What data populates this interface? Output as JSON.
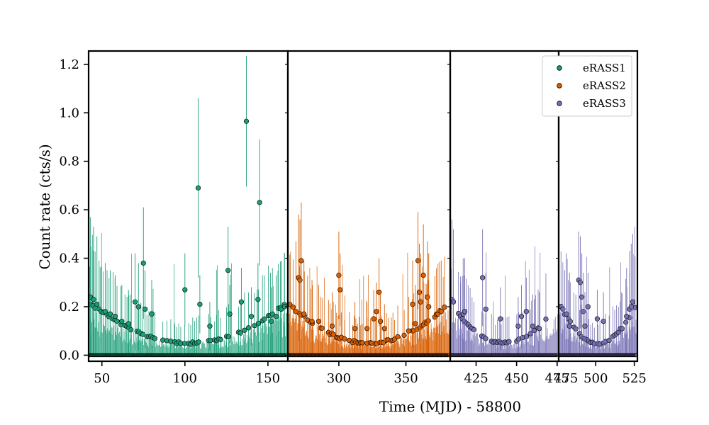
{
  "chart_data": {
    "type": "scatter",
    "title": "",
    "xlabel": "Time (MJD) - 58800",
    "ylabel": "Count rate (cts/s)",
    "ylim": [
      -0.025,
      1.255
    ],
    "yticks": [
      0.0,
      0.2,
      0.4,
      0.6,
      0.8,
      1.0,
      1.2
    ],
    "ytick_labels": [
      "0.0",
      "0.2",
      "0.4",
      "0.6",
      "0.8",
      "1.0",
      "1.2"
    ],
    "grid": false,
    "legend_position": "top-right",
    "series": [
      {
        "name": "eRASS1",
        "color": "#1b9e77"
      },
      {
        "name": "eRASS2",
        "color": "#d95f02"
      },
      {
        "name": "eRASS3",
        "color": "#7570b3"
      }
    ],
    "panels": [
      {
        "series": "eRASS1",
        "xlim": [
          42,
          162
        ],
        "xticks": [
          50,
          100,
          150
        ],
        "xtick_labels": [
          "50",
          "100",
          "150"
        ],
        "highlights": [
          {
            "x": 43,
            "y": 0.24,
            "err": 0.33
          },
          {
            "x": 45,
            "y": 0.23,
            "err": 0.3
          },
          {
            "x": 47,
            "y": 0.21,
            "err": 0.28
          },
          {
            "x": 52,
            "y": 0.18,
            "err": 0.2
          },
          {
            "x": 55,
            "y": 0.17,
            "err": 0.18
          },
          {
            "x": 58,
            "y": 0.16,
            "err": 0.17
          },
          {
            "x": 62,
            "y": 0.14,
            "err": 0.15
          },
          {
            "x": 66,
            "y": 0.13,
            "err": 0.14
          },
          {
            "x": 70,
            "y": 0.22,
            "err": 0.2
          },
          {
            "x": 72,
            "y": 0.2,
            "err": 0.18
          },
          {
            "x": 75,
            "y": 0.38,
            "err": 0.23
          },
          {
            "x": 76,
            "y": 0.19,
            "err": 0.16
          },
          {
            "x": 80,
            "y": 0.17,
            "err": 0.14
          },
          {
            "x": 100,
            "y": 0.27,
            "err": 0.15
          },
          {
            "x": 108,
            "y": 0.69,
            "err": 0.37
          },
          {
            "x": 109,
            "y": 0.21,
            "err": 0.12
          },
          {
            "x": 115,
            "y": 0.12,
            "err": 0.1
          },
          {
            "x": 126,
            "y": 0.35,
            "err": 0.18
          },
          {
            "x": 127,
            "y": 0.17,
            "err": 0.12
          },
          {
            "x": 134,
            "y": 0.22,
            "err": 0.14
          },
          {
            "x": 137,
            "y": 0.965,
            "err": 0.27
          },
          {
            "x": 140,
            "y": 0.16,
            "err": 0.12
          },
          {
            "x": 144,
            "y": 0.23,
            "err": 0.15
          },
          {
            "x": 145,
            "y": 0.63,
            "err": 0.26
          },
          {
            "x": 152,
            "y": 0.14,
            "err": 0.14
          },
          {
            "x": 155,
            "y": 0.16,
            "err": 0.17
          },
          {
            "x": 158,
            "y": 0.19,
            "err": 0.2
          },
          {
            "x": 160,
            "y": 0.2,
            "err": 0.22
          }
        ]
      },
      {
        "series": "eRASS2",
        "xlim": [
          262,
          383
        ],
        "xticks": [
          300,
          350
        ],
        "xtick_labels": [
          "300",
          "350"
        ],
        "highlights": [
          {
            "x": 268,
            "y": 0.18,
            "err": 0.29
          },
          {
            "x": 270,
            "y": 0.32,
            "err": 0.26
          },
          {
            "x": 271,
            "y": 0.31,
            "err": 0.25
          },
          {
            "x": 272,
            "y": 0.39,
            "err": 0.24
          },
          {
            "x": 274,
            "y": 0.17,
            "err": 0.22
          },
          {
            "x": 280,
            "y": 0.14,
            "err": 0.17
          },
          {
            "x": 285,
            "y": 0.14,
            "err": 0.15
          },
          {
            "x": 295,
            "y": 0.12,
            "err": 0.14
          },
          {
            "x": 300,
            "y": 0.33,
            "err": 0.18
          },
          {
            "x": 301,
            "y": 0.27,
            "err": 0.15
          },
          {
            "x": 312,
            "y": 0.11,
            "err": 0.11
          },
          {
            "x": 321,
            "y": 0.11,
            "err": 0.11
          },
          {
            "x": 326,
            "y": 0.15,
            "err": 0.12
          },
          {
            "x": 328,
            "y": 0.18,
            "err": 0.12
          },
          {
            "x": 330,
            "y": 0.26,
            "err": 0.14
          },
          {
            "x": 331,
            "y": 0.14,
            "err": 0.12
          },
          {
            "x": 334,
            "y": 0.11,
            "err": 0.1
          },
          {
            "x": 352,
            "y": 0.1,
            "err": 0.14
          },
          {
            "x": 355,
            "y": 0.21,
            "err": 0.18
          },
          {
            "x": 357,
            "y": 0.13,
            "err": 0.16
          },
          {
            "x": 359,
            "y": 0.39,
            "err": 0.2
          },
          {
            "x": 360,
            "y": 0.26,
            "err": 0.2
          },
          {
            "x": 361,
            "y": 0.22,
            "err": 0.2
          },
          {
            "x": 363,
            "y": 0.33,
            "err": 0.21
          },
          {
            "x": 366,
            "y": 0.24,
            "err": 0.23
          },
          {
            "x": 367,
            "y": 0.2,
            "err": 0.22
          }
        ]
      },
      {
        "series": "eRASS3",
        "xlim": [
          409,
          476
        ],
        "xticks": [
          425,
          450,
          475
        ],
        "xtick_labels": [
          "425",
          "450",
          "475"
        ],
        "highlights": [
          {
            "x": 410,
            "y": 0.23,
            "err": 0.33
          },
          {
            "x": 411,
            "y": 0.22,
            "err": 0.3
          },
          {
            "x": 417,
            "y": 0.17,
            "err": 0.23
          },
          {
            "x": 418,
            "y": 0.18,
            "err": 0.22
          },
          {
            "x": 429,
            "y": 0.32,
            "err": 0.2
          },
          {
            "x": 431,
            "y": 0.19,
            "err": 0.15
          },
          {
            "x": 440,
            "y": 0.15,
            "err": 0.13
          },
          {
            "x": 451,
            "y": 0.12,
            "err": 0.12
          },
          {
            "x": 453,
            "y": 0.16,
            "err": 0.13
          },
          {
            "x": 456,
            "y": 0.18,
            "err": 0.14
          },
          {
            "x": 460,
            "y": 0.12,
            "err": 0.13
          },
          {
            "x": 464,
            "y": 0.11,
            "err": 0.15
          }
        ]
      },
      {
        "series": "eRASS3",
        "xlim": [
          476,
          527
        ],
        "xticks": [
          475,
          500,
          525
        ],
        "xtick_labels": [
          "475",
          "500",
          "525"
        ],
        "highlights": [
          {
            "x": 481,
            "y": 0.17,
            "err": 0.25
          },
          {
            "x": 483,
            "y": 0.12,
            "err": 0.22
          },
          {
            "x": 489,
            "y": 0.31,
            "err": 0.2
          },
          {
            "x": 490,
            "y": 0.3,
            "err": 0.19
          },
          {
            "x": 491,
            "y": 0.24,
            "err": 0.18
          },
          {
            "x": 492,
            "y": 0.18,
            "err": 0.16
          },
          {
            "x": 493,
            "y": 0.12,
            "err": 0.14
          },
          {
            "x": 495,
            "y": 0.2,
            "err": 0.14
          },
          {
            "x": 501,
            "y": 0.15,
            "err": 0.12
          },
          {
            "x": 505,
            "y": 0.14,
            "err": 0.12
          },
          {
            "x": 520,
            "y": 0.16,
            "err": 0.2
          },
          {
            "x": 522,
            "y": 0.19,
            "err": 0.24
          },
          {
            "x": 523,
            "y": 0.2,
            "err": 0.26
          },
          {
            "x": 524,
            "y": 0.22,
            "err": 0.28
          }
        ]
      }
    ]
  }
}
